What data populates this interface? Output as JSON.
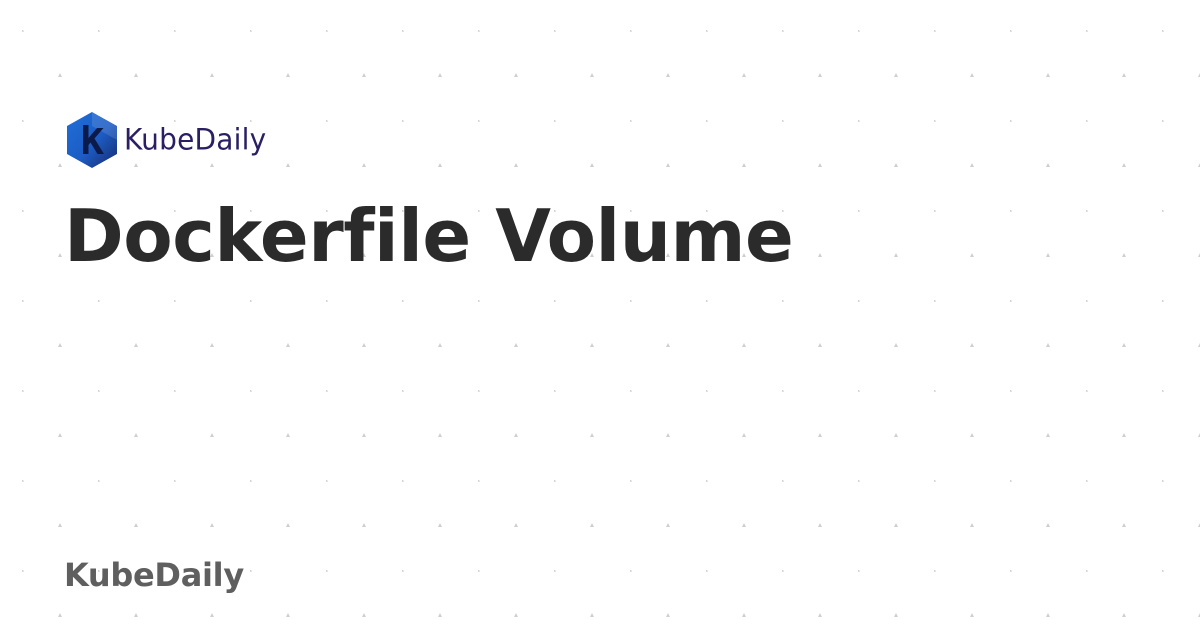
{
  "header": {
    "logo_icon": "kubedaily-hexagon-k-icon",
    "logo_text": "KubeDaily"
  },
  "main": {
    "title": "Dockerfile Volume"
  },
  "footer": {
    "brand": "KubeDaily"
  },
  "colors": {
    "background": "#ffffff",
    "pattern_marker": "#cfcfcf",
    "title": "#2b2b2b",
    "footer_brand": "#5f5f5f",
    "logo_text": "#2a1f63",
    "logo_blue": "#1e6fd9",
    "logo_navy": "#152a6b"
  }
}
